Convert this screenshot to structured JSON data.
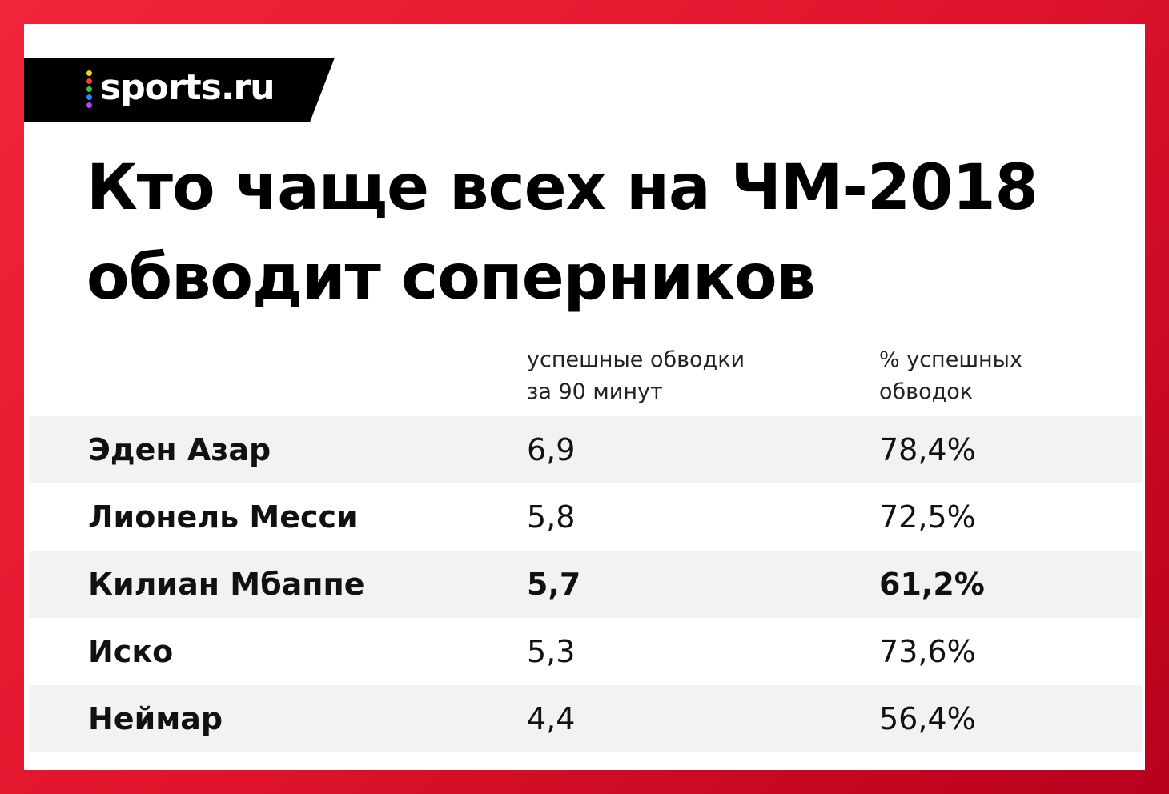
{
  "logo": "sports.ru",
  "title_lines": [
    "Кто чаще всех на ЧМ-2018",
    "обводит соперников"
  ],
  "table": {
    "headers": [
      [
        "успешные обводки",
        "за 90 минут"
      ],
      [
        "% успешных",
        "обводок"
      ]
    ],
    "rows": [
      {
        "name": "Эден Азар",
        "dribbles": "6,9",
        "success": "78,4%",
        "bold": false
      },
      {
        "name": "Лионель Месси",
        "dribbles": "5,8",
        "success": "72,5%",
        "bold": false
      },
      {
        "name": "Килиан Мбаппе",
        "dribbles": "5,7",
        "success": "61,2%",
        "bold": true
      },
      {
        "name": "Иско",
        "dribbles": "5,3",
        "success": "73,6%",
        "bold": false
      },
      {
        "name": "Неймар",
        "dribbles": "4,4",
        "success": "56,4%",
        "bold": false
      }
    ]
  }
}
